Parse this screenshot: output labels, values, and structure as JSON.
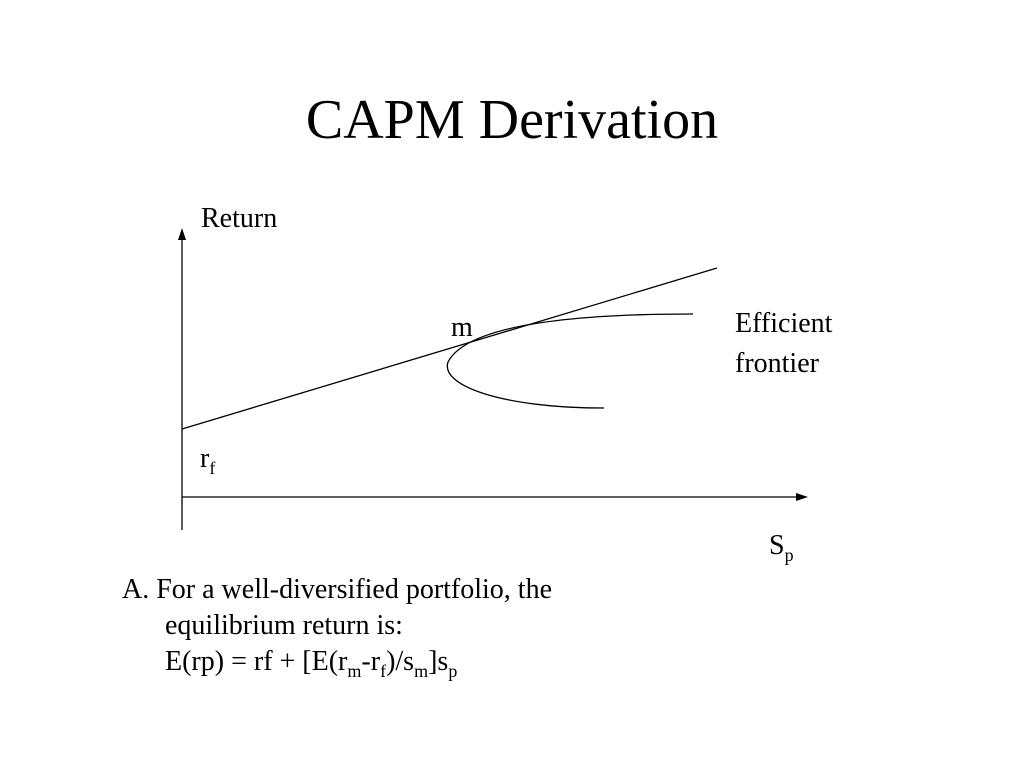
{
  "slide": {
    "title": "CAPM Derivation"
  },
  "diagram": {
    "y_axis_label": "Return",
    "x_axis_label_main": "S",
    "x_axis_label_sub": "p",
    "rf_label_main": "r",
    "rf_label_sub": "f",
    "market_point_label": "m",
    "frontier_label_line1": "Efficient",
    "frontier_label_line2": "frontier",
    "colors": {
      "line": "#000000",
      "background": "#ffffff"
    }
  },
  "bullet": {
    "line1": "A. For a well-diversified portfolio, the",
    "line2": "equilibrium return is:",
    "formula": {
      "p1": "E(rp) = rf + [E(r",
      "s1": "m",
      "p2": "-r",
      "s2": "f",
      "p3": ")/s",
      "s3": "m",
      "p4": "]s",
      "s4": "p"
    }
  }
}
